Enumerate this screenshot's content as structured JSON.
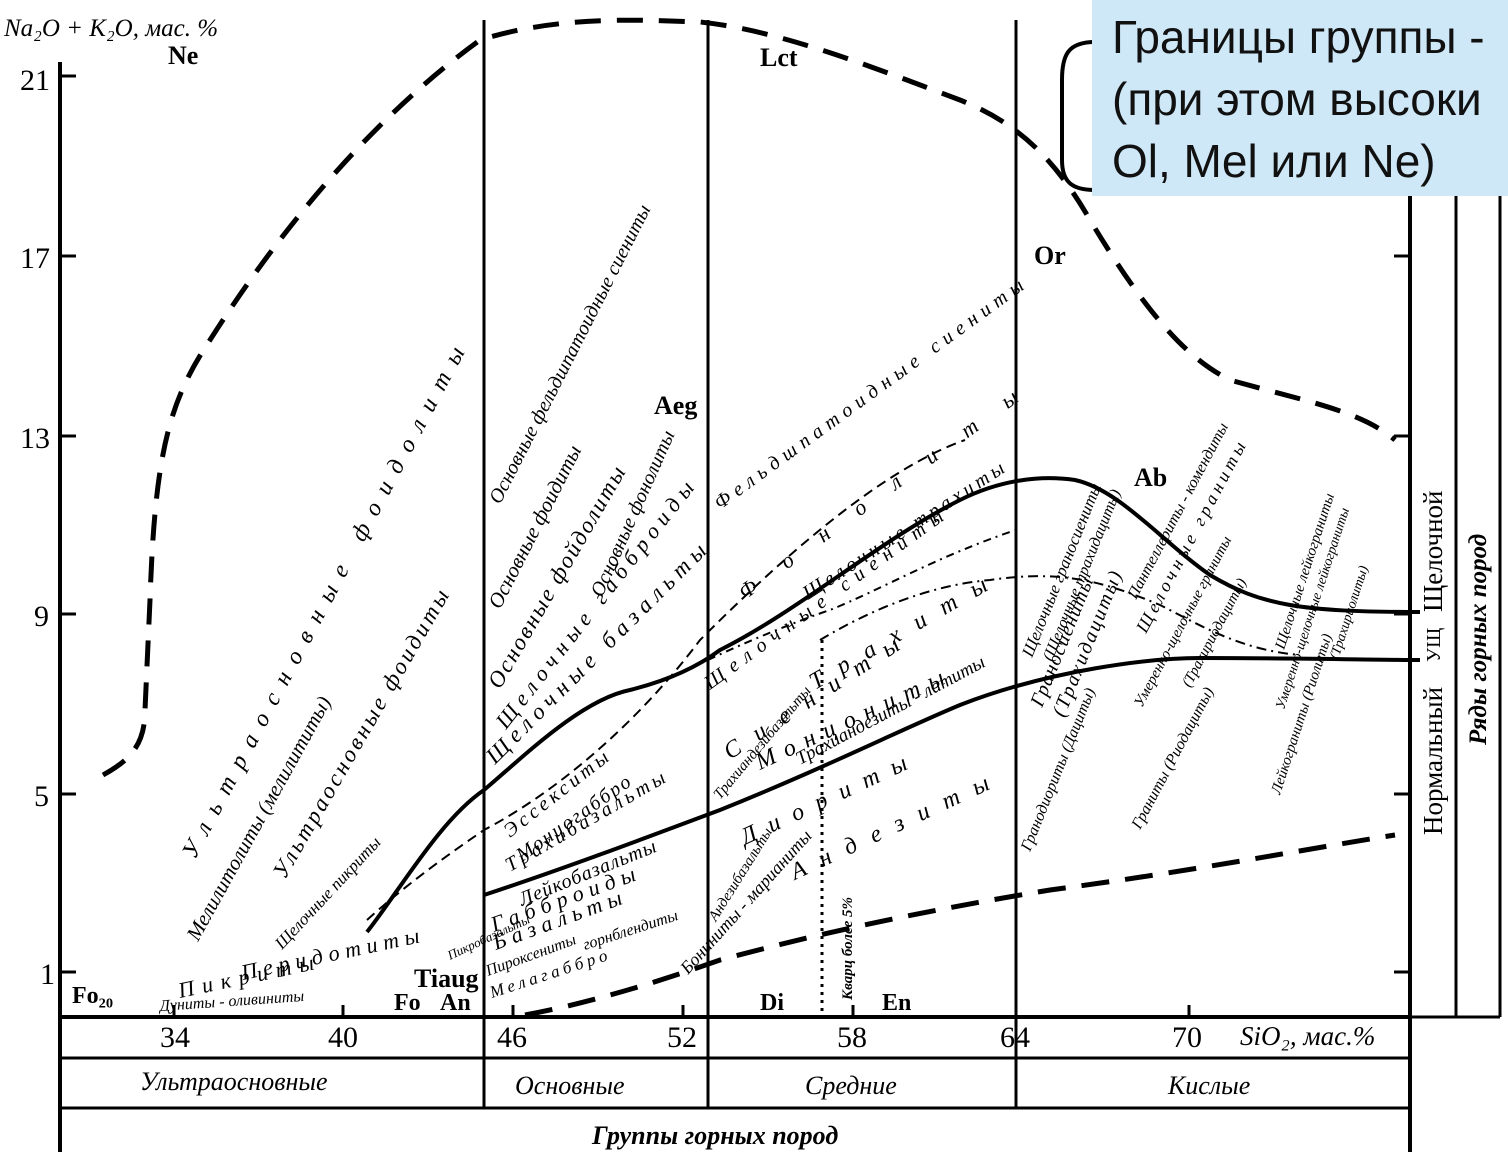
{
  "y_axis": {
    "label": "Na₂O + K₂O, мас. %",
    "ticks": [
      "21",
      "17",
      "13",
      "9",
      "5",
      "1"
    ]
  },
  "x_axis": {
    "label": "SiO₂, мас.%",
    "ticks": [
      "34",
      "40",
      "46",
      "52",
      "58",
      "64",
      "70"
    ]
  },
  "groups": [
    "Ультраосновные",
    "Основные",
    "Средние",
    "Кислые"
  ],
  "groups_caption": "Группы горных пород",
  "series_labels": {
    "normal": "Нормальный",
    "ush": "УЩ",
    "alk": "Щелочной",
    "caption": "Ряды горных пород"
  },
  "minerals": {
    "ne": "Ne",
    "lct": "Lct",
    "or": "Or",
    "aeg": "Aeg",
    "ab": "Ab",
    "tiaug": "Tiaug",
    "fo20": "Fo₂₀",
    "fo": "Fo",
    "an": "An",
    "di": "Di",
    "en": "En"
  },
  "rock_names": {
    "ultra_foidolity": "Ультраосновные фоидолиты",
    "ultra_foidity": "Ультраосновные фоидиты",
    "melilitolity": "Мелилитолиты (мелилититы)",
    "alk_picrites": "Щелочные пикриты",
    "peridotites": "Перидотиты",
    "picrites": "Пикриты",
    "dunites": "Дуниты - оливиниты",
    "picrobasalts": "Пикробазальты",
    "pyroxenites": "Пироксениты",
    "mela_gabbro": "Мелагаббро",
    "hornblendites": "горнблендиты",
    "basic_feldspathoid_syenites": "Основные фельдшпатоидные сиениты",
    "basic_foidites": "Основные фоидиты",
    "basic_foidolites": "Основные фойдолиты",
    "alk_gabbroids": "Щелочные габброиды",
    "basic_phonolites": "Основные фонолиты",
    "alk_basalts": "Щелочные базальты",
    "essexites": "Эссекситы",
    "monzogabbro": "Монцогаббро",
    "trachybasalts": "Трахибазальты",
    "leucobasalts": "Лейкобазальты",
    "gabbroids": "Габброиды",
    "basalts": "Базальты",
    "feldspathoid_syenites": "Фельдшпатоидные сиениты",
    "phonolites": "Фонолиты",
    "alk_syenites": "Щелочные сиениты",
    "alk_trachytes": "Щелочные трахиты",
    "syenites": "Сиениты",
    "trachytes": "Трахиты",
    "monzonites": "Монцониты",
    "trachyandesites_latites": "Трахиандезиты - латиты",
    "trachyandesibasalts": "Трахиандезибазальты",
    "diorites": "Диориты",
    "andesites": "Андезиты",
    "andesibasalts": "Андезибазальты",
    "boninites": "Бониниты - марианиты",
    "quartz": "Кварц более 5%",
    "alk_granosyenites": "Щелочные граносиениты",
    "alk_trachydacites": "(Щелочные трахидациты)",
    "granosyenites": "Граносиениты",
    "trachydacites": "(Трахидациты)",
    "granodiorites": "Гранодиориты (Дациты)",
    "pantellerites": "Пантеллериты - комендиты",
    "alk_granites": "Щелочные граниты",
    "mod_alk_granites": "Умеренно-щелочные граниты",
    "trachyrhyodacites": "(Трахириодациты)",
    "granites": "Граниты (Риодациты)",
    "alk_leucogranites": "Щелочные лейкограниты",
    "mod_alk_leucogranites": "Умеренно-щелочные лейкограниты",
    "trachyrhyolites": "(Трахириолиты)",
    "leucogranites": "Лейкограниты (Риолиты)"
  },
  "callout": {
    "line1": "Границы группы -",
    "line2": "(при этом высоки",
    "line3": "Ol, Mel или Ne)"
  }
}
